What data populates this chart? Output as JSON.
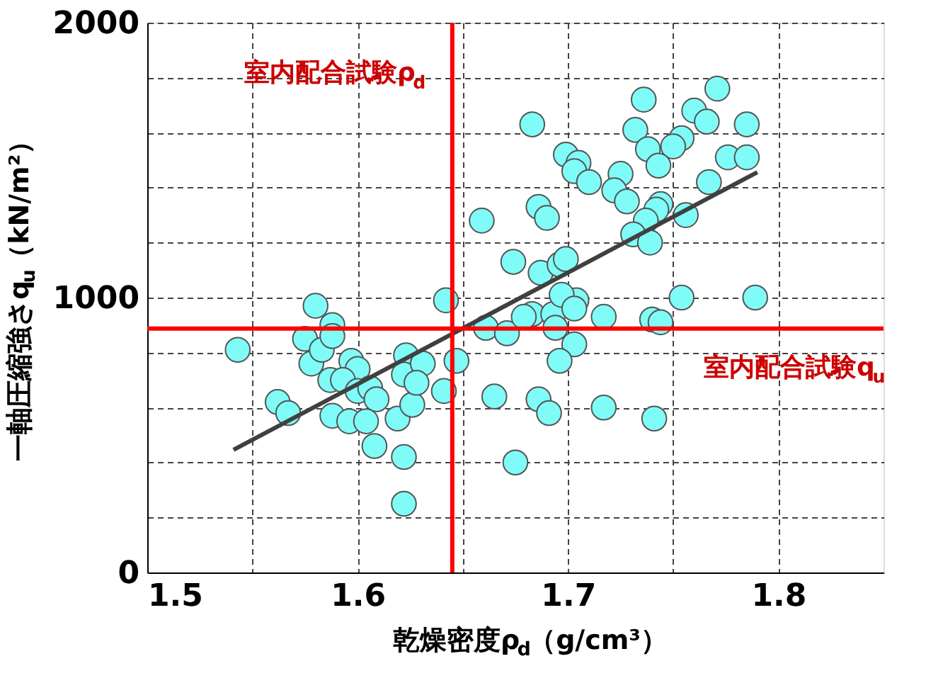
{
  "chart_data": {
    "type": "scatter",
    "xlabel": "乾燥密度ρ$_{d}$（g/cm³）",
    "ylabel": "一軸圧縮強さq$_{u}$（kN/m²）",
    "xlim": [
      1.5,
      1.85
    ],
    "ylim": [
      0,
      2000
    ],
    "xticks": [
      1.5,
      {
        "value": 1.55,
        "label": null
      },
      1.6,
      {
        "value": 1.65,
        "label": null
      },
      1.7,
      {
        "value": 1.75,
        "label": null
      },
      1.8
    ],
    "yticks": [
      0,
      {
        "value": 200,
        "label": null
      },
      {
        "value": 400,
        "label": null
      },
      {
        "value": 600,
        "label": null
      },
      {
        "value": 800,
        "label": null
      },
      1000,
      {
        "value": 1200,
        "label": null
      },
      {
        "value": 1400,
        "label": null
      },
      {
        "value": 1600,
        "label": null
      },
      {
        "value": 1800,
        "label": null
      },
      2000
    ],
    "grid": true,
    "series": [
      {
        "color": "#7ffcf8",
        "marker": "circle",
        "x": [
          1.543,
          1.562,
          1.567,
          1.575,
          1.58,
          1.578,
          1.583,
          1.588,
          1.588,
          1.597,
          1.6,
          1.587,
          1.593,
          1.6,
          1.606,
          1.609,
          1.588,
          1.596,
          1.604,
          1.608,
          1.619,
          1.626,
          1.622,
          1.622,
          1.623,
          1.622,
          1.631,
          1.628,
          1.641,
          1.647,
          1.642,
          1.661,
          1.671,
          1.665,
          1.675,
          1.683,
          1.679,
          1.693,
          1.704,
          1.717,
          1.74,
          1.744,
          1.694,
          1.703,
          1.696,
          1.686,
          1.691,
          1.717,
          1.741,
          1.754,
          1.789,
          1.659,
          1.683,
          1.736,
          1.771,
          1.76,
          1.766,
          1.785,
          1.732,
          1.754,
          1.75,
          1.738,
          1.743,
          1.699,
          1.705,
          1.703,
          1.71,
          1.725,
          1.722,
          1.728,
          1.776,
          1.785,
          1.767,
          1.686,
          1.69,
          1.744,
          1.742,
          1.756,
          1.737,
          1.731,
          1.739,
          1.674,
          1.687,
          1.696,
          1.699,
          1.697,
          1.703
        ],
        "values": [
          810,
          620,
          580,
          850,
          970,
          760,
          810,
          900,
          860,
          770,
          740,
          700,
          700,
          660,
          670,
          630,
          570,
          550,
          550,
          460,
          560,
          610,
          420,
          250,
          790,
          720,
          760,
          690,
          660,
          770,
          990,
          890,
          870,
          640,
          400,
          940,
          930,
          940,
          990,
          930,
          920,
          910,
          890,
          830,
          770,
          630,
          580,
          600,
          560,
          1000,
          1000,
          1280,
          1630,
          1720,
          1760,
          1680,
          1640,
          1630,
          1610,
          1580,
          1550,
          1540,
          1480,
          1520,
          1490,
          1460,
          1420,
          1450,
          1390,
          1350,
          1510,
          1510,
          1420,
          1330,
          1290,
          1340,
          1320,
          1300,
          1280,
          1230,
          1200,
          1130,
          1090,
          1120,
          1140,
          1010,
          960
        ]
      },
      {
        "type": "line",
        "color": "#404040",
        "marker": "none",
        "line_style": "solid",
        "x": [
          1.541,
          1.79
        ],
        "values": [
          446,
          1456
        ]
      }
    ],
    "ref_lines": [
      {
        "axis": "x",
        "value": 1.645,
        "label": "室内配合試験ρ$_{d}$",
        "color": "#ff0000",
        "line_style": "solid"
      },
      {
        "axis": "y",
        "value": 887,
        "label": "室内配合試験q$_{u}$",
        "color": "#ff0000",
        "line_style": "solid"
      }
    ]
  }
}
